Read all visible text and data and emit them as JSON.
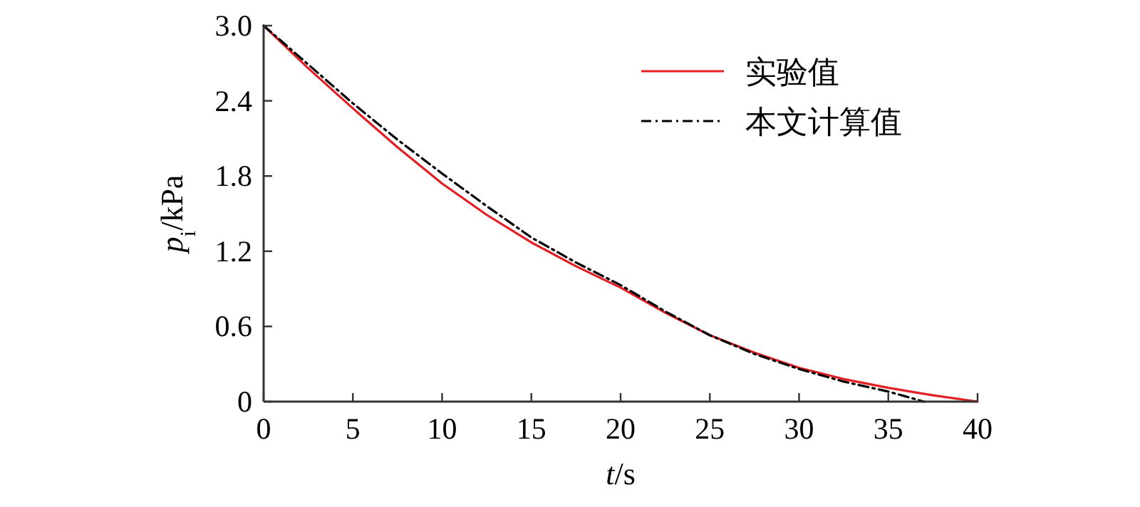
{
  "chart_data": {
    "type": "line",
    "xlabel": "t/s",
    "ylabel": "p$_{i}$/kPa",
    "xlim": [
      0,
      40
    ],
    "xticks": [
      0,
      5,
      10,
      15,
      20,
      25,
      30,
      35,
      40
    ],
    "ylim": [
      0,
      3
    ],
    "yticks": [
      0,
      0.6,
      1.2,
      1.8,
      2.4,
      {
        "value": 3,
        "label": "3.0"
      }
    ],
    "grid": false,
    "legend": "top right",
    "series": [
      {
        "name": "实验值",
        "color": "#e31e24",
        "line_style": "solid",
        "x": [
          0,
          2.5,
          5,
          7.5,
          10,
          12.5,
          15,
          17.5,
          20,
          22.5,
          25,
          27.5,
          30,
          32.5,
          35,
          37.5,
          40
        ],
        "values": [
          3.0,
          2.66,
          2.34,
          2.03,
          1.74,
          1.49,
          1.27,
          1.08,
          0.91,
          0.71,
          0.53,
          0.39,
          0.27,
          0.18,
          0.11,
          0.05,
          0
        ]
      },
      {
        "name": "本文计算值",
        "color": "#000000",
        "line_style": "dashdot",
        "x": [
          0,
          2.5,
          5,
          7.5,
          10,
          12.5,
          15,
          17.5,
          20,
          22.5,
          25,
          27.5,
          30,
          32.5,
          35,
          37
        ],
        "values": [
          3.0,
          2.69,
          2.38,
          2.09,
          1.82,
          1.56,
          1.31,
          1.11,
          0.93,
          0.72,
          0.53,
          0.38,
          0.26,
          0.16,
          0.08,
          0
        ]
      }
    ]
  }
}
